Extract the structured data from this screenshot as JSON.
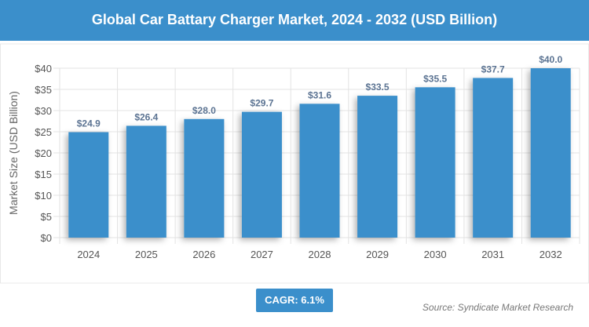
{
  "title": "Global Car Battary Charger Market, 2024 - 2032 (USD Billion)",
  "cagr": "CAGR: 6.1%",
  "source": "Source: Syndicate Market Research",
  "chart_data": {
    "type": "bar",
    "categories": [
      "2024",
      "2025",
      "2026",
      "2027",
      "2028",
      "2029",
      "2030",
      "2031",
      "2032"
    ],
    "values": [
      24.9,
      26.4,
      28.0,
      29.7,
      31.6,
      33.5,
      35.5,
      37.7,
      40.0
    ],
    "data_labels": [
      "$24.9",
      "$26.4",
      "$28.0",
      "$29.7",
      "$31.6",
      "$33.5",
      "$35.5",
      "$37.7",
      "$40.0"
    ],
    "ylabel": "Market Size (USD Billion)",
    "xlabel": "",
    "ylim": [
      0,
      40
    ],
    "yticks": [
      "$0",
      "$5",
      "$10",
      "$15",
      "$20",
      "$25",
      "$30",
      "$35",
      "$40"
    ],
    "grid": true,
    "bar_color": "#3b8fcb",
    "label_color": "#5b7392"
  }
}
